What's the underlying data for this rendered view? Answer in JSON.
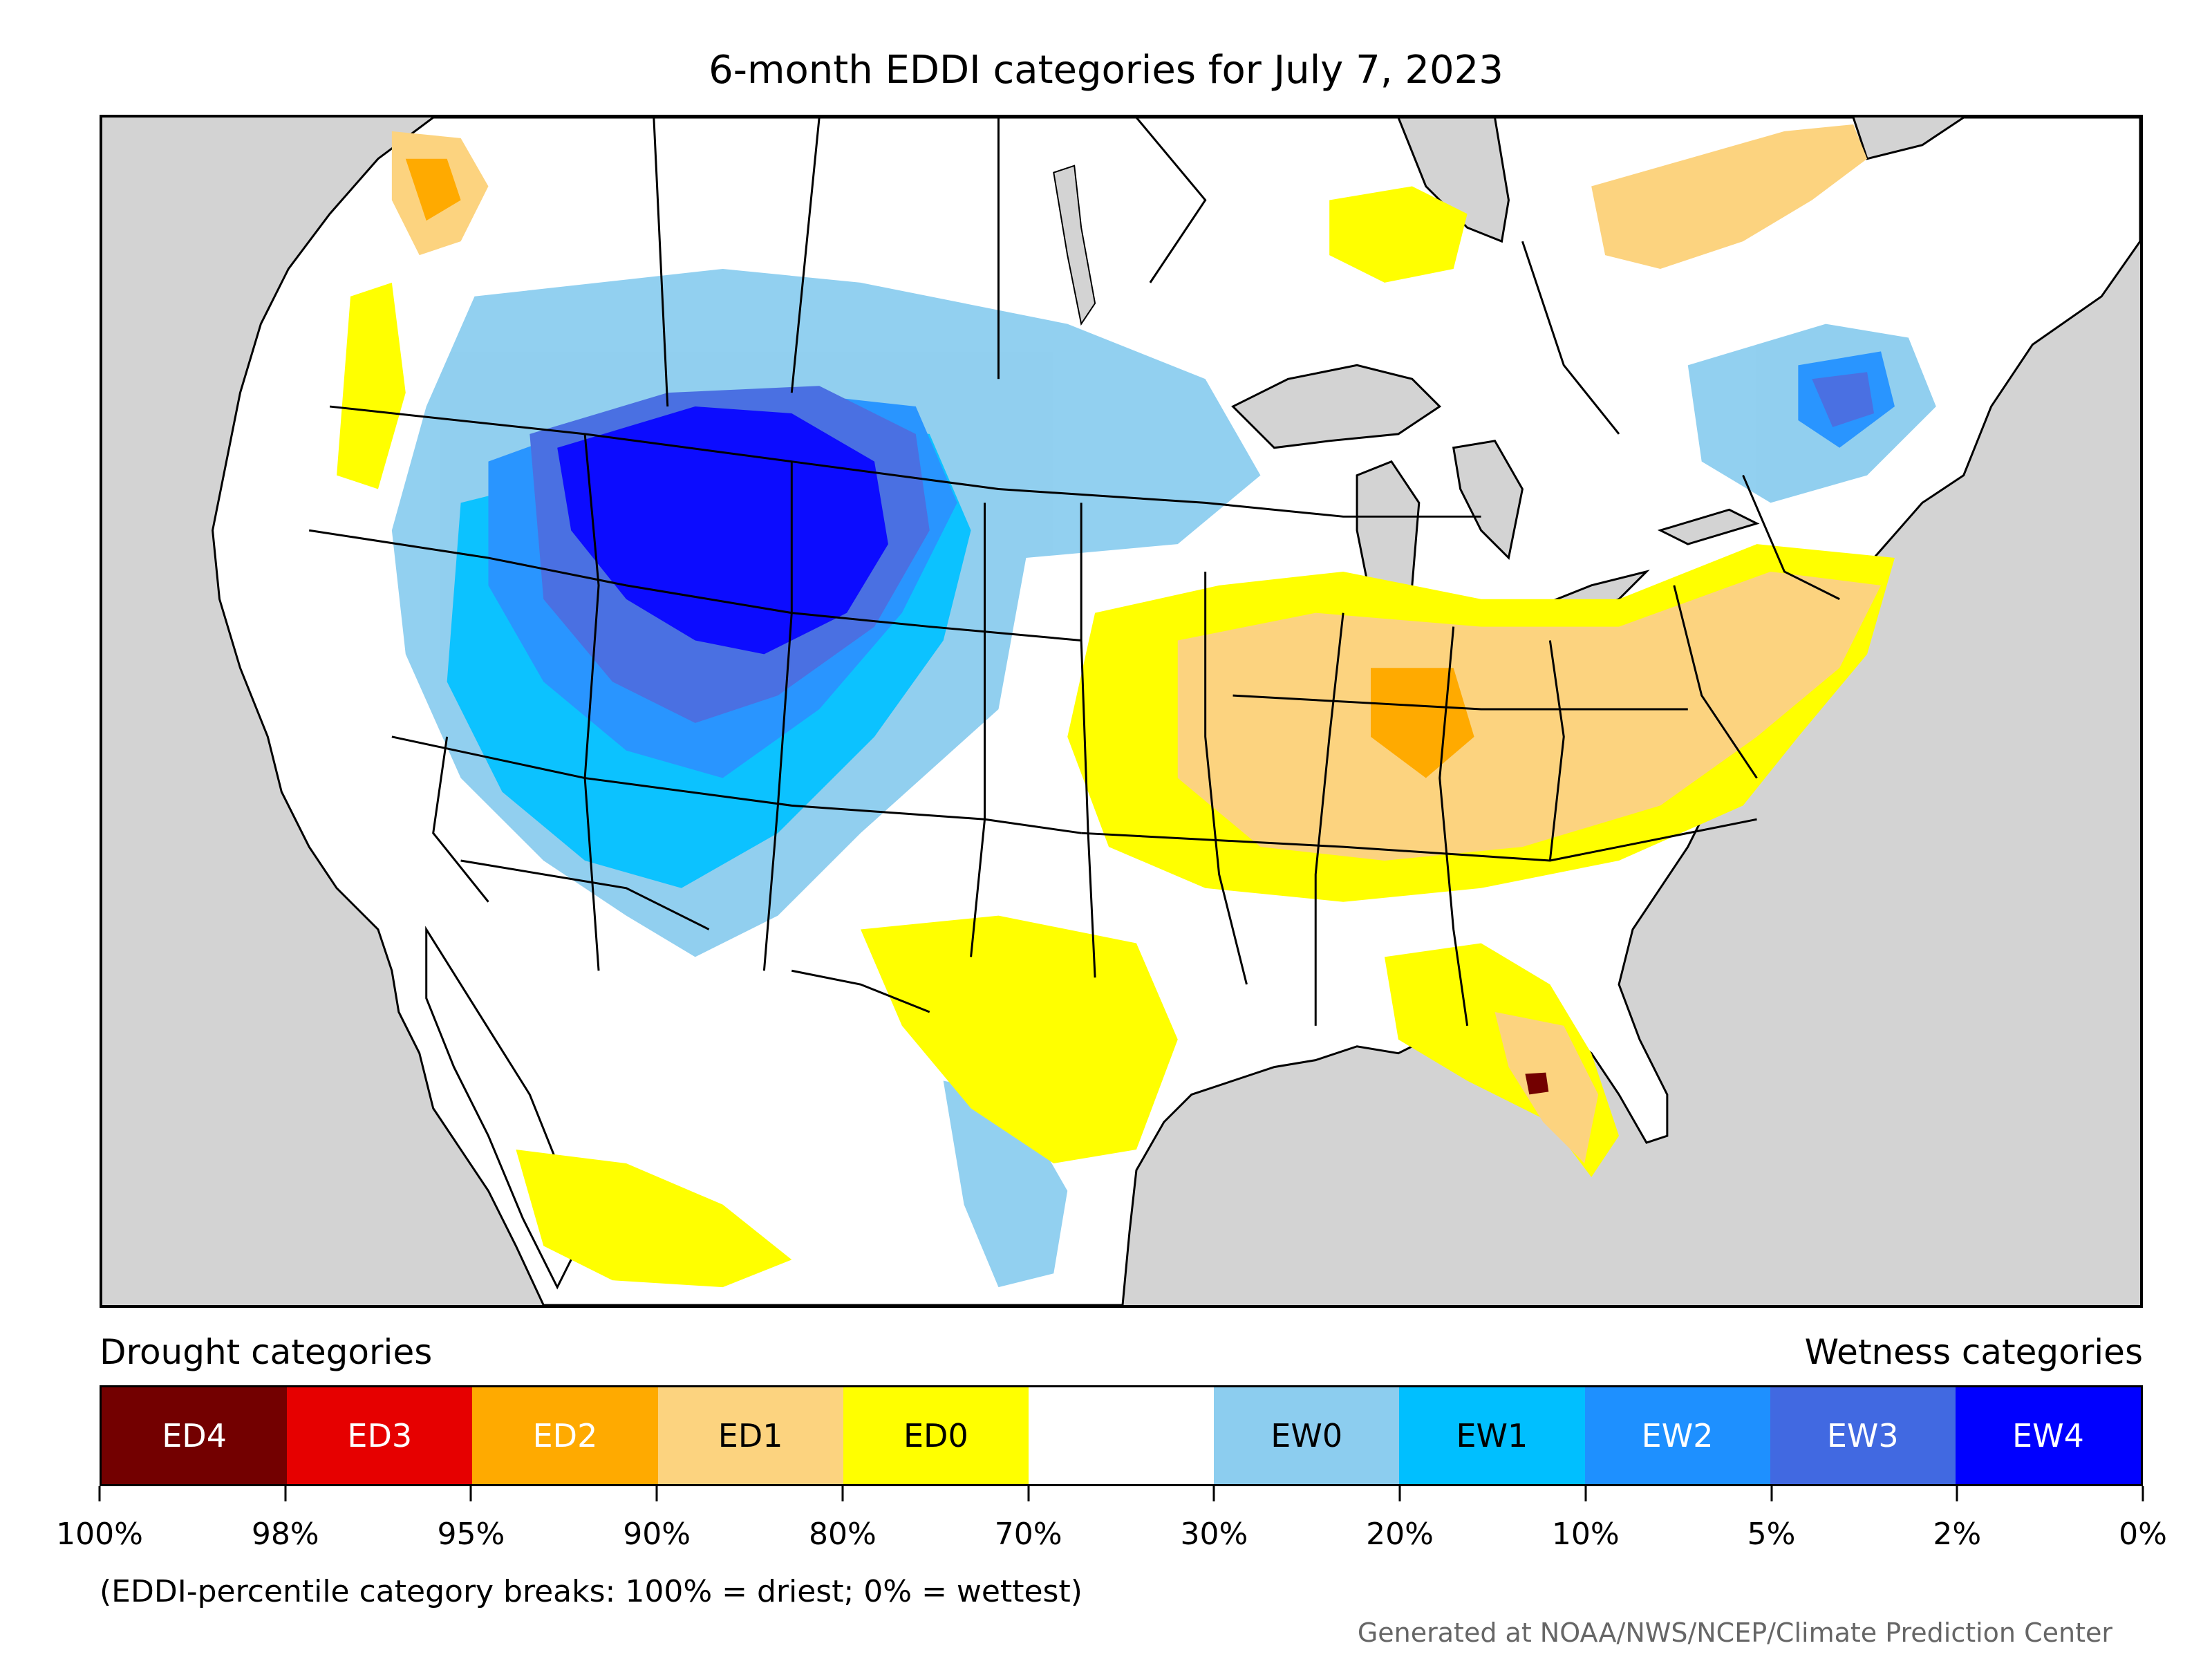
{
  "title": "6-month EDDI categories for July 7, 2023",
  "legend": {
    "left_heading": "Drought categories",
    "right_heading": "Wetness categories",
    "categories": [
      {
        "label": "ED4",
        "color": "#730000",
        "text_color": "#ffffff"
      },
      {
        "label": "ED3",
        "color": "#e60000",
        "text_color": "#ffffff"
      },
      {
        "label": "ED2",
        "color": "#ffaa00",
        "text_color": "#ffffff"
      },
      {
        "label": "ED1",
        "color": "#fcd37f",
        "text_color": "#000000"
      },
      {
        "label": "ED0",
        "color": "#ffff00",
        "text_color": "#000000"
      },
      {
        "label": "",
        "color": "#ffffff",
        "text_color": "#000000"
      },
      {
        "label": "EW0",
        "color": "#8ccdef",
        "text_color": "#000000"
      },
      {
        "label": "EW1",
        "color": "#00bfff",
        "text_color": "#000000"
      },
      {
        "label": "EW2",
        "color": "#1e90ff",
        "text_color": "#ffffff"
      },
      {
        "label": "EW3",
        "color": "#4169e1",
        "text_color": "#ffffff"
      },
      {
        "label": "EW4",
        "color": "#0000ff",
        "text_color": "#ffffff"
      }
    ],
    "breaks": [
      "100%",
      "98%",
      "95%",
      "90%",
      "80%",
      "70%",
      "30%",
      "20%",
      "10%",
      "5%",
      "2%",
      "0%"
    ]
  },
  "note": "(EDDI-percentile category breaks: 100% = driest; 0% = wettest)",
  "credit": "Generated at NOAA/NWS/NCEP/Climate Prediction Center",
  "colors": {
    "ocean": "#d3d3d3",
    "land": "#ffffff",
    "boundary": "#000000"
  }
}
